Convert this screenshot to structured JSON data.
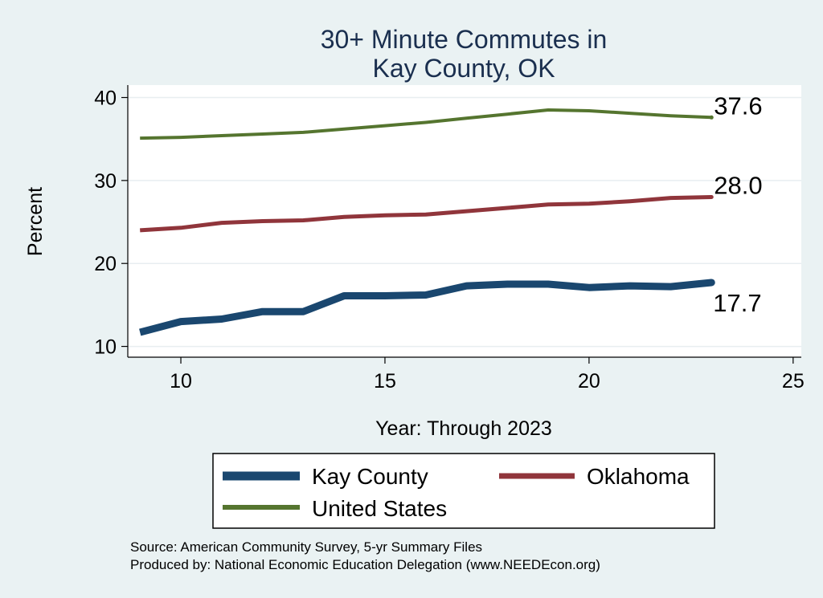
{
  "chart_data": {
    "type": "line",
    "title_lines": [
      "30+ Minute Commutes in",
      "Kay County, OK"
    ],
    "xlabel": "Year: Through 2023",
    "ylabel": "Percent",
    "xlim": [
      8.7,
      25.2
    ],
    "ylim": [
      8.7,
      41.5
    ],
    "x_ticks": [
      10,
      15,
      20,
      25
    ],
    "y_ticks": [
      10,
      20,
      30,
      40
    ],
    "grid": true,
    "x": [
      9,
      10,
      11,
      12,
      13,
      14,
      15,
      16,
      17,
      18,
      19,
      20,
      21,
      22,
      23
    ],
    "series": [
      {
        "name": "Kay County",
        "color": "#1a476f",
        "width": 9,
        "values": [
          11.7,
          13.0,
          13.3,
          14.2,
          14.2,
          16.1,
          16.1,
          16.2,
          17.3,
          17.5,
          17.5,
          17.1,
          17.3,
          17.2,
          17.7
        ],
        "end_label": "17.7",
        "label_position": "below"
      },
      {
        "name": "Oklahoma",
        "color": "#90353b",
        "width": 5,
        "values": [
          24.0,
          24.3,
          24.9,
          25.1,
          25.2,
          25.6,
          25.8,
          25.9,
          26.3,
          26.7,
          27.1,
          27.2,
          27.5,
          27.9,
          28.0
        ],
        "end_label": "28.0",
        "label_position": "right"
      },
      {
        "name": "United States",
        "color": "#55752f",
        "width": 4,
        "values": [
          35.1,
          35.2,
          35.4,
          35.6,
          35.8,
          36.2,
          36.6,
          37.0,
          37.5,
          38.0,
          38.5,
          38.4,
          38.1,
          37.8,
          37.6
        ],
        "end_label": "37.6",
        "label_position": "right"
      }
    ],
    "legend": {
      "placement": "bottom",
      "entries": [
        "Kay County",
        "Oklahoma",
        "United States"
      ]
    },
    "notes": [
      "Source: American Community Survey, 5-yr Summary Files",
      "Produced by: National Economic Education Delegation (www.NEEDEcon.org)"
    ]
  }
}
